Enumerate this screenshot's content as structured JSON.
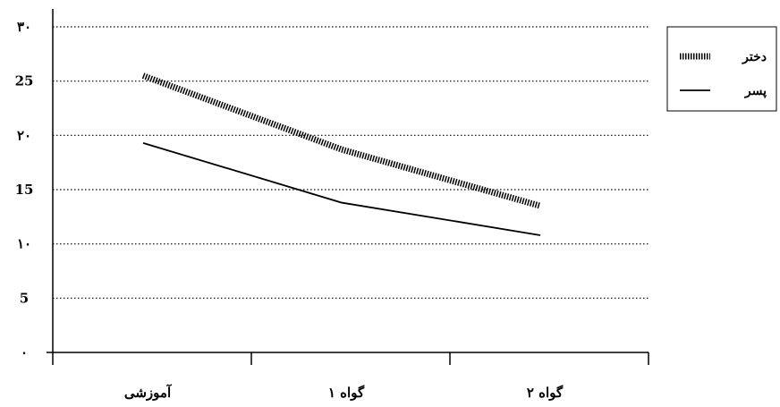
{
  "chart_data": {
    "type": "line",
    "categories": [
      "آموزشی",
      "گواه ۱",
      "گواه ۲"
    ],
    "y_tick_labels": [
      "۰",
      "5",
      "۱۰",
      "15",
      "۲۰",
      "25",
      "۳۰"
    ],
    "y_ticks": [
      0,
      5,
      10,
      15,
      20,
      25,
      30
    ],
    "ylim": [
      0,
      30
    ],
    "grid": "horizontal-dotted",
    "legend_position": "top-right",
    "series": [
      {
        "name": "دختر",
        "values": [
          25.5,
          18.7,
          13.5
        ],
        "style": "dashed-thick"
      },
      {
        "name": "پسر",
        "values": [
          19.3,
          13.8,
          10.8
        ],
        "style": "solid"
      }
    ]
  }
}
